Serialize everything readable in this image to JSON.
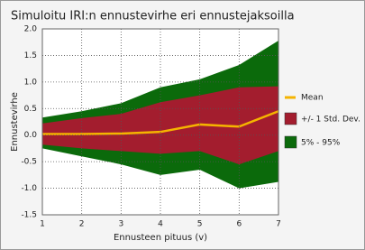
{
  "chart_data": {
    "type": "band-line",
    "title": "Simuloitu IRI:n ennustevirhe eri ennustejaksoilla",
    "x_label": "Ennusteen pituus (v)",
    "y_label": "Ennustevirhe",
    "x": [
      1,
      2,
      3,
      4,
      5,
      6,
      7
    ],
    "xlim": [
      1,
      7
    ],
    "xticks": [
      1,
      2,
      3,
      4,
      5,
      6,
      7
    ],
    "ylim": [
      -1.5,
      2
    ],
    "yticks": [
      {
        "value": -1.5,
        "label": "-1.5"
      },
      {
        "value": -1,
        "label": "-1.0"
      },
      {
        "value": -0.5,
        "label": "-0.5"
      },
      {
        "value": 0,
        "label": "0.0"
      },
      {
        "value": 0.5,
        "label": "0.5"
      },
      {
        "value": 1,
        "label": "1.0"
      },
      {
        "value": 1.5,
        "label": "1.5"
      },
      {
        "value": 2,
        "label": "2.0"
      }
    ],
    "grid": true,
    "bands": [
      {
        "name": "5% - 95%",
        "color": "#0b6a0b",
        "lower": [
          -0.25,
          -0.4,
          -0.55,
          -0.75,
          -0.65,
          -1.0,
          -0.88
        ],
        "upper": [
          0.33,
          0.45,
          0.6,
          0.9,
          1.05,
          1.32,
          1.78
        ]
      },
      {
        "name": "+/- 1 Std. Dev.",
        "color": "#a31d2e",
        "lower": [
          -0.18,
          -0.25,
          -0.3,
          -0.35,
          -0.3,
          -0.55,
          -0.3
        ],
        "upper": [
          0.22,
          0.32,
          0.4,
          0.62,
          0.75,
          0.9,
          0.92
        ]
      }
    ],
    "series": [
      {
        "name": "Mean",
        "color": "#f5b400",
        "values": [
          0.02,
          0.02,
          0.03,
          0.06,
          0.2,
          0.16,
          0.45
        ]
      }
    ]
  }
}
